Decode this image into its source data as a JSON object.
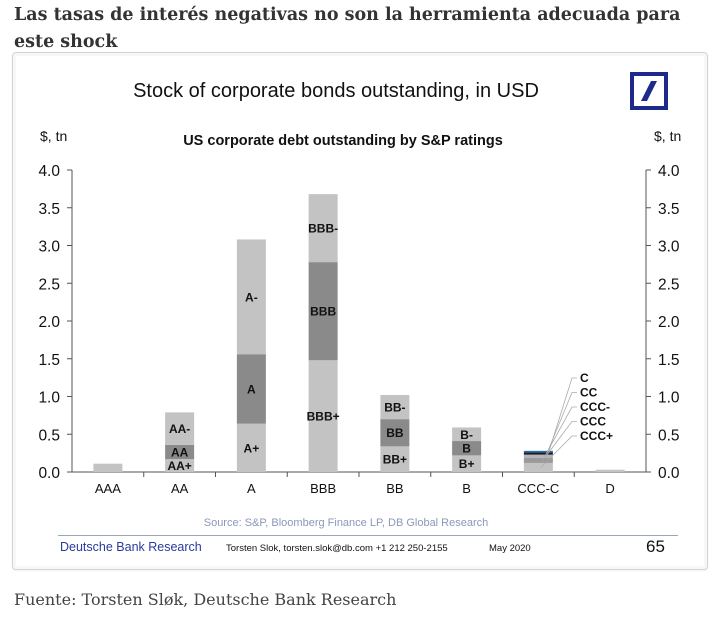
{
  "article": {
    "headline": "Las tasas de interés negativas no son la herramienta adecuada para este shock",
    "caption": "Fuente: Torsten Sløk, Deutsche Bank Research"
  },
  "slide": {
    "title": "Stock of corporate bonds outstanding, in USD",
    "logo_icon": "deutsche-bank-logo",
    "source": "Source: S&P, Bloomberg Finance LP, DB Global Research",
    "footer": {
      "brand": "Deutsche Bank Research",
      "author": "Torsten Slok, torsten.slok@db.com  +1 212 250-2155",
      "date": "May 2020",
      "page": "65"
    }
  },
  "colors": {
    "light_segment": "#c3c3c3",
    "dark_segment": "#8a8a8a",
    "ccc_mid": "#9a9a9a",
    "ccc_minus": "#b5b5b5",
    "cc_segment": "#1a1a2e",
    "c_segment": "#1f6fa8",
    "axis": "#555555",
    "logo_blue": "#1d2a8c"
  },
  "chart_data": {
    "type": "bar",
    "stacked": true,
    "title": "US corporate debt outstanding by S&P ratings",
    "ylabel_left": "$, tn",
    "ylabel_right": "$, tn",
    "xlabel": "",
    "ylim": [
      0,
      4.0
    ],
    "yticks": [
      "0.0",
      "0.5",
      "1.0",
      "1.5",
      "2.0",
      "2.5",
      "3.0",
      "3.5",
      "4.0"
    ],
    "grid": false,
    "categories": [
      "AAA",
      "AA",
      "A",
      "BBB",
      "BB",
      "B",
      "CCC-C",
      "D"
    ],
    "bars": [
      {
        "category": "AAA",
        "segments": [
          {
            "label": "",
            "value": 0.11,
            "shade": "light"
          }
        ]
      },
      {
        "category": "AA",
        "segments": [
          {
            "label": "AA+",
            "value": 0.17,
            "shade": "light"
          },
          {
            "label": "AA",
            "value": 0.19,
            "shade": "dark"
          },
          {
            "label": "AA-",
            "value": 0.43,
            "shade": "light"
          }
        ]
      },
      {
        "category": "A",
        "segments": [
          {
            "label": "A+",
            "value": 0.64,
            "shade": "light"
          },
          {
            "label": "A",
            "value": 0.92,
            "shade": "dark"
          },
          {
            "label": "A-",
            "value": 1.52,
            "shade": "light"
          }
        ]
      },
      {
        "category": "BBB",
        "segments": [
          {
            "label": "BBB+",
            "value": 1.48,
            "shade": "light"
          },
          {
            "label": "BBB",
            "value": 1.3,
            "shade": "dark"
          },
          {
            "label": "BBB-",
            "value": 0.9,
            "shade": "light"
          }
        ]
      },
      {
        "category": "BB",
        "segments": [
          {
            "label": "BB+",
            "value": 0.34,
            "shade": "light"
          },
          {
            "label": "BB",
            "value": 0.36,
            "shade": "dark"
          },
          {
            "label": "BB-",
            "value": 0.32,
            "shade": "light"
          }
        ]
      },
      {
        "category": "B",
        "segments": [
          {
            "label": "B+",
            "value": 0.22,
            "shade": "light"
          },
          {
            "label": "B",
            "value": 0.19,
            "shade": "dark"
          },
          {
            "label": "B-",
            "value": 0.18,
            "shade": "light"
          }
        ]
      },
      {
        "category": "CCC-C",
        "segments": [
          {
            "label": "CCC+",
            "value": 0.12,
            "shade": "light"
          },
          {
            "label": "CCC",
            "value": 0.07,
            "shade": "ccc_mid"
          },
          {
            "label": "CCC-",
            "value": 0.04,
            "shade": "ccc_minus"
          },
          {
            "label": "CC",
            "value": 0.03,
            "shade": "cc"
          },
          {
            "label": "C",
            "value": 0.02,
            "shade": "c"
          }
        ],
        "callout_labels": [
          "C",
          "CC",
          "CCC-",
          "CCC",
          "CCC+"
        ]
      },
      {
        "category": "D",
        "segments": [
          {
            "label": "",
            "value": 0.03,
            "shade": "light"
          }
        ]
      }
    ]
  }
}
